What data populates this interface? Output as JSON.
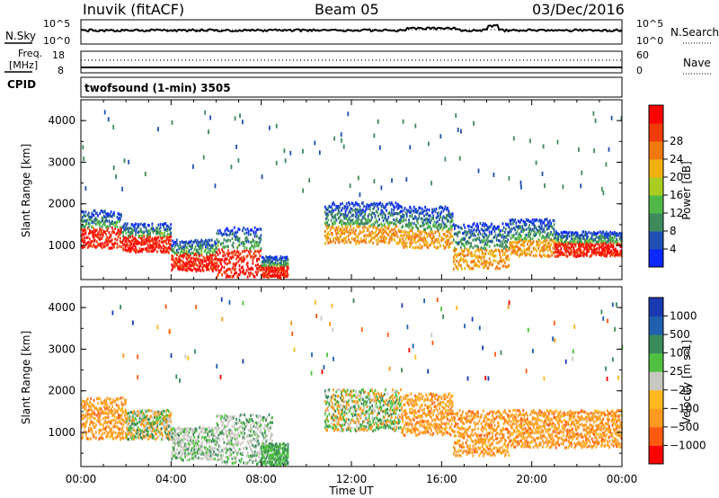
{
  "header": {
    "station": "Inuvik (fitACF)",
    "beam": "Beam 05",
    "date": "03/Dec/2016",
    "program": "twofsound (1-min) 3505",
    "cpid_label": "CPID"
  },
  "strip_nsky": {
    "left_label": "N.Sky",
    "left_ticks": [
      "10^5",
      "10^0"
    ],
    "right_label": "N.Search",
    "right_ticks": [
      "10^5",
      "10^0"
    ]
  },
  "strip_freq": {
    "left_label_1": "Freq.",
    "left_label_2": "[MHz]",
    "left_ticks": [
      "18",
      "8"
    ],
    "right_label": "Nave",
    "right_ticks": [
      "60",
      "0"
    ]
  },
  "colors": {
    "power": [
      "#0a28ff",
      "#2050b4",
      "#3e8a5c",
      "#50b848",
      "#a8cc20",
      "#f0b010",
      "#f07a10",
      "#f03a08",
      "#ff0000"
    ],
    "velocity": [
      "#ff0000",
      "#ff5a10",
      "#ff9a20",
      "#ffb820",
      "#c8c8c0",
      "#50c040",
      "#3a8a5a",
      "#2060b0",
      "#1a3ab4"
    ]
  },
  "chart_data": [
    {
      "type": "heatmap",
      "name": "power",
      "ylabel": "Slant Range [km]",
      "xlabel": "",
      "ylim": [
        180,
        4500
      ],
      "yticks": [
        "1000",
        "2000",
        "3000",
        "4000"
      ],
      "xlim_hours": [
        0,
        24
      ],
      "xticks": [
        "00:00",
        "04:00",
        "08:00",
        "12:00",
        "16:00",
        "20:00",
        "00:00"
      ],
      "colorbar_label": "Power [dB]",
      "colorbar_ticks": [
        "4",
        "8",
        "12",
        "16",
        "20",
        "24",
        "28"
      ],
      "bands": [
        {
          "h0": 0.0,
          "h1": 1.8,
          "r_lo": 900,
          "r_hi": 1800,
          "val": "strong"
        },
        {
          "h0": 1.8,
          "h1": 4.0,
          "r_lo": 800,
          "r_hi": 1500,
          "val": "strong"
        },
        {
          "h0": 4.0,
          "h1": 6.0,
          "r_lo": 350,
          "r_hi": 1100,
          "val": "strong"
        },
        {
          "h0": 6.0,
          "h1": 8.0,
          "r_lo": 200,
          "r_hi": 1400,
          "val": "strong"
        },
        {
          "h0": 8.0,
          "h1": 9.2,
          "r_lo": 180,
          "r_hi": 700,
          "val": "strong"
        },
        {
          "h0": 10.8,
          "h1": 14.2,
          "r_lo": 1000,
          "r_hi": 2000,
          "val": "medium"
        },
        {
          "h0": 14.2,
          "h1": 16.5,
          "r_lo": 900,
          "r_hi": 1900,
          "val": "medium"
        },
        {
          "h0": 16.5,
          "h1": 19.0,
          "r_lo": 400,
          "r_hi": 1500,
          "val": "medium"
        },
        {
          "h0": 19.0,
          "h1": 21.0,
          "r_lo": 700,
          "r_hi": 1600,
          "val": "medium"
        },
        {
          "h0": 21.0,
          "h1": 24.0,
          "r_lo": 700,
          "r_hi": 1300,
          "val": "strong"
        }
      ]
    },
    {
      "type": "heatmap",
      "name": "velocity",
      "ylabel": "Slant Range [km]",
      "xlabel": "Time UT",
      "ylim": [
        180,
        4500
      ],
      "yticks": [
        "1000",
        "2000",
        "3000",
        "4000"
      ],
      "xlim_hours": [
        0,
        24
      ],
      "xticks": [
        "00:00",
        "04:00",
        "08:00",
        "12:00",
        "16:00",
        "20:00",
        "00:00"
      ],
      "colorbar_label": "Velocity [m s-1]",
      "colorbar_ticks": [
        "1000",
        "500",
        "100",
        "25",
        "−25",
        "−100",
        "−500",
        "−1000"
      ],
      "bands": [
        {
          "h0": 0.0,
          "h1": 2.0,
          "r_lo": 800,
          "r_hi": 1800,
          "val": "neg"
        },
        {
          "h0": 2.0,
          "h1": 4.0,
          "r_lo": 800,
          "r_hi": 1500,
          "val": "mixed"
        },
        {
          "h0": 4.0,
          "h1": 6.0,
          "r_lo": 300,
          "r_hi": 1100,
          "val": "grey"
        },
        {
          "h0": 6.0,
          "h1": 8.5,
          "r_lo": 200,
          "r_hi": 1400,
          "val": "grey"
        },
        {
          "h0": 8.0,
          "h1": 9.2,
          "r_lo": 180,
          "r_hi": 700,
          "val": "green"
        },
        {
          "h0": 10.8,
          "h1": 14.2,
          "r_lo": 1000,
          "r_hi": 2000,
          "val": "mixed"
        },
        {
          "h0": 14.2,
          "h1": 16.5,
          "r_lo": 900,
          "r_hi": 1900,
          "val": "neg"
        },
        {
          "h0": 16.5,
          "h1": 19.0,
          "r_lo": 400,
          "r_hi": 1500,
          "val": "neg"
        },
        {
          "h0": 19.0,
          "h1": 24.0,
          "r_lo": 600,
          "r_hi": 1500,
          "val": "neg"
        }
      ]
    }
  ]
}
